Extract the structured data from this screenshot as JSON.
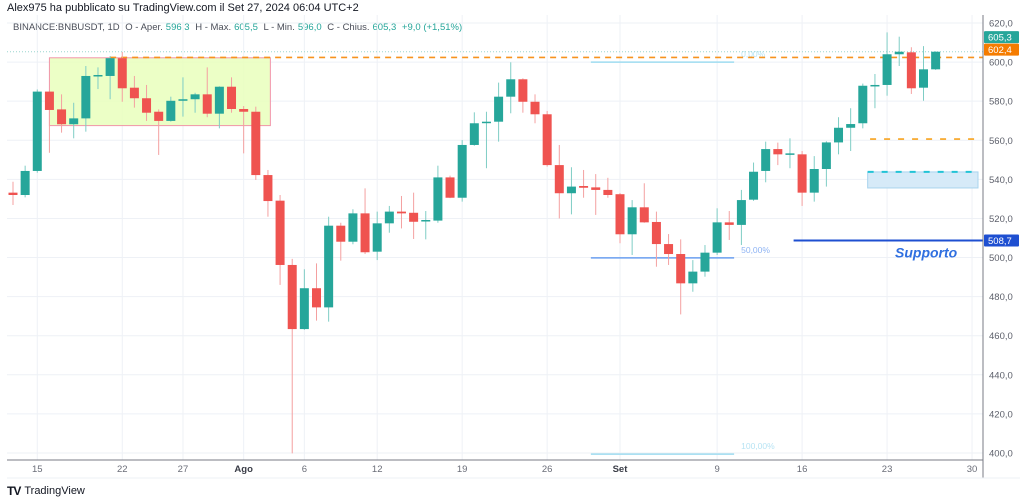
{
  "header": {
    "published": "Alex975 ha pubblicato su TradingView.com il Set 27, 2024 06:04 UTC+2",
    "symbol": "BINANCE:BNBUSDT, 1D",
    "open_label": "O - Aper.",
    "open": "596,3",
    "high_label": "H - Max.",
    "high": "605,5",
    "low_label": "L - Min.",
    "low": "596,0",
    "close_label": "C - Chius.",
    "close": "605,3",
    "change": "+9,0 (+1,51%)"
  },
  "footer": {
    "logo_text": "TradingView",
    "logo_mark": "TV"
  },
  "colors": {
    "up": "#26a69a",
    "down": "#ef5350",
    "orange": "#f57c00",
    "support": "#1e4fd1",
    "fib": "#9fdcf0",
    "fib50": "#6b9ff0"
  },
  "chart_data": {
    "type": "candlestick",
    "title": "BINANCE:BNBUSDT, 1D",
    "start_date": "2024-07-13",
    "ylim": [
      400,
      620
    ],
    "grid": true,
    "y_ticks": [
      {
        "value": 620,
        "label": "620,0"
      },
      {
        "value": 600,
        "label": "600,0"
      },
      {
        "value": 580,
        "label": "580,0"
      },
      {
        "value": 560,
        "label": "560,0"
      },
      {
        "value": 540,
        "label": "540,0"
      },
      {
        "value": 520,
        "label": "520,0"
      },
      {
        "value": 500,
        "label": "500,0"
      },
      {
        "value": 480,
        "label": "480,0"
      },
      {
        "value": 460,
        "label": "460,0"
      },
      {
        "value": 440,
        "label": "440,0"
      },
      {
        "value": 420,
        "label": "420,0"
      },
      {
        "value": 400,
        "label": "400,0"
      }
    ],
    "x_ticks": [
      {
        "day": 2,
        "label": "15",
        "bold": false
      },
      {
        "day": 9,
        "label": "22",
        "bold": false
      },
      {
        "day": 14,
        "label": "27",
        "bold": false
      },
      {
        "day": 19,
        "label": "Ago",
        "bold": true
      },
      {
        "day": 24,
        "label": "6",
        "bold": false
      },
      {
        "day": 30,
        "label": "12",
        "bold": false
      },
      {
        "day": 37,
        "label": "19",
        "bold": false
      },
      {
        "day": 44,
        "label": "26",
        "bold": false
      },
      {
        "day": 50,
        "label": "Set",
        "bold": true
      },
      {
        "day": 58,
        "label": "9",
        "bold": false
      },
      {
        "day": 65,
        "label": "16",
        "bold": false
      },
      {
        "day": 72,
        "label": "23",
        "bold": false
      },
      {
        "day": 79,
        "label": "30",
        "bold": false
      }
    ],
    "ohlc": [
      [
        533.2,
        538.8,
        526.9,
        532.0
      ],
      [
        532.0,
        547.0,
        530.8,
        544.3
      ],
      [
        544.3,
        586.0,
        543.4,
        584.9
      ],
      [
        584.9,
        585.2,
        553.6,
        575.5
      ],
      [
        575.8,
        583.5,
        563.9,
        568.2
      ],
      [
        568.2,
        579.2,
        561.0,
        571.2
      ],
      [
        571.2,
        598.0,
        564.4,
        592.9
      ],
      [
        592.9,
        597.3,
        586.2,
        593.4
      ],
      [
        592.9,
        603.1,
        581.0,
        602.0
      ],
      [
        602.0,
        605.2,
        579.7,
        586.6
      ],
      [
        586.9,
        592.9,
        576.7,
        581.5
      ],
      [
        581.5,
        588.3,
        569.9,
        574.1
      ],
      [
        574.6,
        575.8,
        552.5,
        569.9
      ],
      [
        569.9,
        582.3,
        569.5,
        580.2
      ],
      [
        580.2,
        592.2,
        572.1,
        581.0
      ],
      [
        581.0,
        584.3,
        574.1,
        583.5
      ],
      [
        583.5,
        597.3,
        571.8,
        573.6
      ],
      [
        573.6,
        587.6,
        566.1,
        587.4
      ],
      [
        587.4,
        592.2,
        574.1,
        576.0
      ],
      [
        576.0,
        577.5,
        553.3,
        574.6
      ],
      [
        574.6,
        577.2,
        539.7,
        542.2
      ],
      [
        542.2,
        544.8,
        520.9,
        528.9
      ],
      [
        529.1,
        532.0,
        486.0,
        496.2
      ],
      [
        496.2,
        499.3,
        399.8,
        463.4
      ],
      [
        463.4,
        494.0,
        463.0,
        484.3
      ],
      [
        484.3,
        497.0,
        467.7,
        474.5
      ],
      [
        474.5,
        520.9,
        467.2,
        516.3
      ],
      [
        516.3,
        517.8,
        498.4,
        508.1
      ],
      [
        508.1,
        524.7,
        506.8,
        522.6
      ],
      [
        522.6,
        535.4,
        501.8,
        502.7
      ],
      [
        503.0,
        523.5,
        498.7,
        517.5
      ],
      [
        517.5,
        526.4,
        512.7,
        523.5
      ],
      [
        523.5,
        531.5,
        514.9,
        522.6
      ],
      [
        522.9,
        533.2,
        509.5,
        518.3
      ],
      [
        518.6,
        523.8,
        509.3,
        519.2
      ],
      [
        518.9,
        547.0,
        517.8,
        541.0
      ],
      [
        541.0,
        541.9,
        530.4,
        530.6
      ],
      [
        530.6,
        560.1,
        528.6,
        557.6
      ],
      [
        557.6,
        574.3,
        557.2,
        568.7
      ],
      [
        569.1,
        574.6,
        545.7,
        569.5
      ],
      [
        569.5,
        589.5,
        559.3,
        582.3
      ],
      [
        582.3,
        599.9,
        573.8,
        591.2
      ],
      [
        591.2,
        591.7,
        574.1,
        579.7
      ],
      [
        579.7,
        583.5,
        568.7,
        573.3
      ],
      [
        573.3,
        575.0,
        546.5,
        547.3
      ],
      [
        547.3,
        557.6,
        520.0,
        532.9
      ],
      [
        532.9,
        546.2,
        522.1,
        536.3
      ],
      [
        536.6,
        544.8,
        530.6,
        535.7
      ],
      [
        535.9,
        542.7,
        521.8,
        534.6
      ],
      [
        534.6,
        540.8,
        530.6,
        532.0
      ],
      [
        532.4,
        533.0,
        507.3,
        511.9
      ],
      [
        511.9,
        529.4,
        501.3,
        525.7
      ],
      [
        525.7,
        538.0,
        517.8,
        518.0
      ],
      [
        518.2,
        523.5,
        495.3,
        506.9
      ],
      [
        506.9,
        512.0,
        496.2,
        501.8
      ],
      [
        501.8,
        509.3,
        470.9,
        486.8
      ],
      [
        486.8,
        498.7,
        482.5,
        492.8
      ],
      [
        492.8,
        506.4,
        490.2,
        502.5
      ],
      [
        502.5,
        525.2,
        501.3,
        518.0
      ],
      [
        518.0,
        523.8,
        509.0,
        516.7
      ],
      [
        516.7,
        534.6,
        506.4,
        529.4
      ],
      [
        529.6,
        548.6,
        529.0,
        543.9
      ],
      [
        544.3,
        559.3,
        538.5,
        555.5
      ],
      [
        555.5,
        558.8,
        547.3,
        552.8
      ],
      [
        553.0,
        561.0,
        545.7,
        553.3
      ],
      [
        552.8,
        554.5,
        526.4,
        533.2
      ],
      [
        533.2,
        551.9,
        528.6,
        545.3
      ],
      [
        545.3,
        559.5,
        536.3,
        558.9
      ],
      [
        558.9,
        571.8,
        552.8,
        566.4
      ],
      [
        566.4,
        576.4,
        554.5,
        568.3
      ],
      [
        568.7,
        589.0,
        566.1,
        587.9
      ],
      [
        587.9,
        593.9,
        576.4,
        588.3
      ],
      [
        588.3,
        615.2,
        582.8,
        604.0
      ],
      [
        604.0,
        613.0,
        598.0,
        605.3
      ],
      [
        605.0,
        607.6,
        583.7,
        586.6
      ],
      [
        586.9,
        608.2,
        580.2,
        596.3
      ],
      [
        596.3,
        605.5,
        596.0,
        605.3
      ]
    ],
    "annotations": {
      "range_box": {
        "day_from": 3,
        "day_to": 21.2,
        "price_top": 602.2,
        "price_bottom": 567.5
      },
      "resistance_line": {
        "price": 602.4,
        "day_from": 8,
        "label": "602,4"
      },
      "last_price": {
        "price": 605.3,
        "label": "605,3"
      },
      "fib": {
        "day_from": 47.6,
        "day_to": 59.4,
        "levels": [
          {
            "price": 600.0,
            "label": "0,00%"
          },
          {
            "price": 499.8,
            "label": "50,00%"
          },
          {
            "price": 399.4,
            "label": "100,00%"
          }
        ]
      },
      "target_line": {
        "price": 560.6,
        "day_from": 70.6
      },
      "demand_zone": {
        "day_from": 70.4,
        "price_top": 543.8,
        "price_bottom": 535.6
      },
      "support": {
        "price": 508.7,
        "day_from": 64.3,
        "label": "508,7",
        "text": "Supporto"
      }
    }
  }
}
